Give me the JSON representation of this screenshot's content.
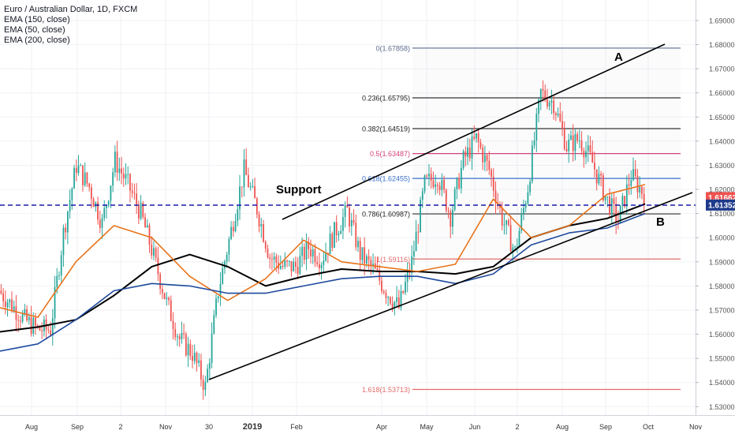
{
  "header": {
    "symbol_line": "Euro / Australian Dollar, 1D, FXCM",
    "indicators": [
      "EMA (150, close)",
      "EMA (50, close)",
      "EMA (200, close)"
    ]
  },
  "chart_data": {
    "type": "candlestick",
    "title": "Euro / Australian Dollar, 1D, FXCM",
    "ylim": [
      1.5265,
      1.6985
    ],
    "y_ticks": [
      "1.69000",
      "1.68000",
      "1.67000",
      "1.66000",
      "1.65000",
      "1.64000",
      "1.63000",
      "1.62000",
      "1.61000",
      "1.60000",
      "1.59000",
      "1.58000",
      "1.57000",
      "1.56000",
      "1.55000",
      "1.54000",
      "1.53000"
    ],
    "x_ticks": [
      {
        "label": "Aug",
        "bold": false
      },
      {
        "label": "Sep",
        "bold": false
      },
      {
        "label": "2",
        "bold": false
      },
      {
        "label": "Nov",
        "bold": false
      },
      {
        "label": "30",
        "bold": false
      },
      {
        "label": "2019",
        "bold": true
      },
      {
        "label": "Feb",
        "bold": false
      },
      {
        "label": "Apr",
        "bold": false
      },
      {
        "label": "May",
        "bold": false
      },
      {
        "label": "Jun",
        "bold": false
      },
      {
        "label": "2",
        "bold": false
      },
      {
        "label": "Aug",
        "bold": false
      },
      {
        "label": "Sep",
        "bold": false
      },
      {
        "label": "Oct",
        "bold": false
      },
      {
        "label": "Nov",
        "bold": false
      }
    ],
    "price_tags": [
      {
        "label": "1.61662",
        "value": 1.61662,
        "color": "#ef5350"
      },
      {
        "label": "1.61352",
        "value": 1.61352,
        "color": "#1e3a8a"
      }
    ],
    "support_level": 1.6135,
    "fib_levels": [
      {
        "label": "0(1.67858)",
        "value": 1.67858,
        "color": "#5d6d8e"
      },
      {
        "label": "0.236(1.65795)",
        "value": 1.65795,
        "color": "#333333"
      },
      {
        "label": "0.382(1.64519)",
        "value": 1.64519,
        "color": "#333333"
      },
      {
        "label": "0.5(1.63487)",
        "value": 1.63487,
        "color": "#d6407a"
      },
      {
        "label": "0.618(1.62455)",
        "value": 1.62455,
        "color": "#3b6fc9"
      },
      {
        "label": "0.786(1.60987)",
        "value": 1.60987,
        "color": "#333333"
      },
      {
        "label": "1(1.59116)",
        "value": 1.59116,
        "color": "#e36b6b"
      },
      {
        "label": "1.618(1.53713)",
        "value": 1.53713,
        "color": "#e36b6b"
      }
    ],
    "annotations": [
      {
        "text": "Support"
      },
      {
        "text": "A"
      },
      {
        "text": "B"
      }
    ],
    "series": [
      {
        "name": "EMA (150, close)",
        "color": "#000000",
        "values": [
          1.561,
          1.563,
          1.566,
          1.576,
          1.588,
          1.593,
          1.588,
          1.58,
          1.584,
          1.587,
          1.586,
          1.586,
          1.585,
          1.588,
          1.6,
          1.605,
          1.608,
          1.614
        ]
      },
      {
        "name": "EMA (50, close)",
        "color": "#e8731a",
        "values": [
          1.571,
          1.567,
          1.59,
          1.605,
          1.6,
          1.584,
          1.574,
          1.583,
          1.599,
          1.59,
          1.588,
          1.586,
          1.589,
          1.616,
          1.6,
          1.605,
          1.618,
          1.622
        ]
      },
      {
        "name": "EMA (200, close)",
        "color": "#1e4a9e",
        "values": [
          1.553,
          1.556,
          1.566,
          1.578,
          1.581,
          1.58,
          1.577,
          1.577,
          1.58,
          1.583,
          1.584,
          1.584,
          1.581,
          1.585,
          1.597,
          1.602,
          1.604,
          1.61
        ]
      }
    ],
    "price_path": [
      1.578,
      1.572,
      1.566,
      1.562,
      1.562,
      1.602,
      1.63,
      1.621,
      1.606,
      1.632,
      1.622,
      1.61,
      1.592,
      1.573,
      1.558,
      1.552,
      1.538,
      1.578,
      1.603,
      1.628,
      1.612,
      1.592,
      1.588,
      1.588,
      1.596,
      1.591,
      1.602,
      1.611,
      1.593,
      1.587,
      1.578,
      1.571,
      1.59,
      1.622,
      1.626,
      1.609,
      1.632,
      1.641,
      1.628,
      1.608,
      1.594,
      1.621,
      1.66,
      1.656,
      1.638,
      1.641,
      1.631,
      1.617,
      1.607,
      1.626,
      1.618
    ]
  }
}
